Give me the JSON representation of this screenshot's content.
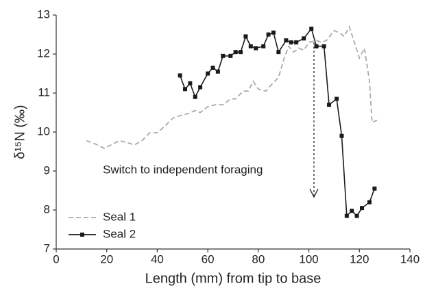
{
  "chart_data": {
    "type": "line",
    "x_label": "Length (mm) from tip to base",
    "y_label": "δ¹⁵N (‰)",
    "annotation": "Switch to independent foraging",
    "xlim": [
      0,
      140
    ],
    "xticks": [
      0,
      20,
      40,
      60,
      80,
      100,
      120,
      140
    ],
    "ylim": [
      7,
      13
    ],
    "yticks": [
      7,
      8,
      9,
      10,
      11,
      12,
      13
    ],
    "legend": "lower left",
    "series": [
      {
        "name": "Seal 1",
        "color": "#aaaaaa",
        "dashed": true,
        "x": [
          12,
          16,
          19,
          22,
          25,
          28,
          31,
          34,
          37,
          40,
          43,
          46,
          49,
          52,
          55,
          57,
          60,
          63,
          66,
          69,
          71,
          74,
          76,
          78,
          80,
          83,
          85,
          88,
          90,
          92,
          94,
          96,
          98,
          100,
          103,
          105,
          107,
          110,
          112,
          114,
          116,
          118,
          120,
          122,
          124,
          125,
          127
        ],
        "values": [
          9.78,
          9.68,
          9.58,
          9.68,
          9.78,
          9.73,
          9.67,
          9.78,
          9.98,
          9.98,
          10.15,
          10.35,
          10.42,
          10.47,
          10.55,
          10.5,
          10.65,
          10.7,
          10.7,
          10.85,
          10.85,
          11.05,
          11.05,
          11.3,
          11.1,
          11.05,
          11.2,
          11.4,
          11.85,
          12.2,
          12.05,
          12.15,
          12.1,
          12.3,
          12.35,
          12.3,
          12.35,
          12.6,
          12.55,
          12.45,
          12.7,
          12.3,
          11.9,
          12.15,
          11.3,
          10.25,
          10.3
        ]
      },
      {
        "name": "Seal 2",
        "color": "#1a1a1a",
        "dashed": false,
        "x": [
          49,
          51,
          53,
          55,
          57,
          60,
          62,
          64,
          66,
          69,
          71,
          73,
          75,
          77,
          79,
          82,
          84,
          86,
          88,
          91,
          93,
          95,
          98,
          101,
          103,
          106,
          108,
          111,
          113,
          115,
          117,
          119,
          121,
          124,
          126
        ],
        "values": [
          11.45,
          11.1,
          11.25,
          10.9,
          11.15,
          11.5,
          11.65,
          11.55,
          11.95,
          11.95,
          12.05,
          12.05,
          12.45,
          12.2,
          12.15,
          12.2,
          12.5,
          12.55,
          12.05,
          12.35,
          12.3,
          12.3,
          12.4,
          12.65,
          12.2,
          12.2,
          10.7,
          10.85,
          9.9,
          7.85,
          7.98,
          7.85,
          8.05,
          8.2,
          8.55
        ]
      }
    ]
  }
}
